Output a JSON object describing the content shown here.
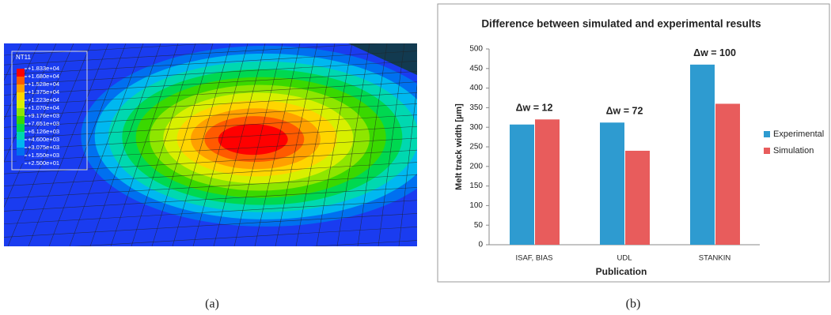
{
  "chart_data": [
    {
      "type": "contour",
      "title": "NT11",
      "levels": [
        {
          "value": 18330,
          "label": "+1.833e+04"
        },
        {
          "value": 16800,
          "label": "+1.680e+04"
        },
        {
          "value": 15280,
          "label": "+1.528e+04"
        },
        {
          "value": 13750,
          "label": "+1.375e+04"
        },
        {
          "value": 12230,
          "label": "+1.223e+04"
        },
        {
          "value": 10700,
          "label": "+1.070e+04"
        },
        {
          "value": 9176,
          "label": "+9.176e+03"
        },
        {
          "value": 7651,
          "label": "+7.651e+03"
        },
        {
          "value": 6126,
          "label": "+6.126e+03"
        },
        {
          "value": 4600,
          "label": "+4.600e+03"
        },
        {
          "value": 3075,
          "label": "+3.075e+03"
        },
        {
          "value": 1550,
          "label": "+1.550e+03"
        },
        {
          "value": 25,
          "label": "+2.500e+01"
        }
      ],
      "colors": [
        "#ff0000",
        "#ff5a00",
        "#ffa000",
        "#ffd500",
        "#d8f000",
        "#8ee600",
        "#3ad800",
        "#00d850",
        "#00d8b0",
        "#00b8f0",
        "#0070f0",
        "#1a3cf0"
      ]
    },
    {
      "type": "bar",
      "title": "Difference between simulated and experimental results",
      "x_label": "Publication",
      "y_label": "Melt track width [µm]",
      "categories": [
        "ISAF, BIAS",
        "UDL",
        "STANKIN"
      ],
      "series": [
        {
          "name": "Experimental",
          "color": "#2e9bd0",
          "values": [
            307,
            312,
            460
          ]
        },
        {
          "name": "Simulation",
          "color": "#e85c5c",
          "values": [
            320,
            240,
            360
          ]
        }
      ],
      "annotations": [
        "Δw = 12",
        "Δw = 72",
        "Δw = 100"
      ],
      "ylim": [
        0,
        500
      ],
      "yticks": [
        0,
        50,
        100,
        150,
        200,
        250,
        300,
        350,
        400,
        450,
        500
      ],
      "grid": false,
      "legend": "right"
    }
  ],
  "captions": [
    "(a)",
    "(b)"
  ]
}
